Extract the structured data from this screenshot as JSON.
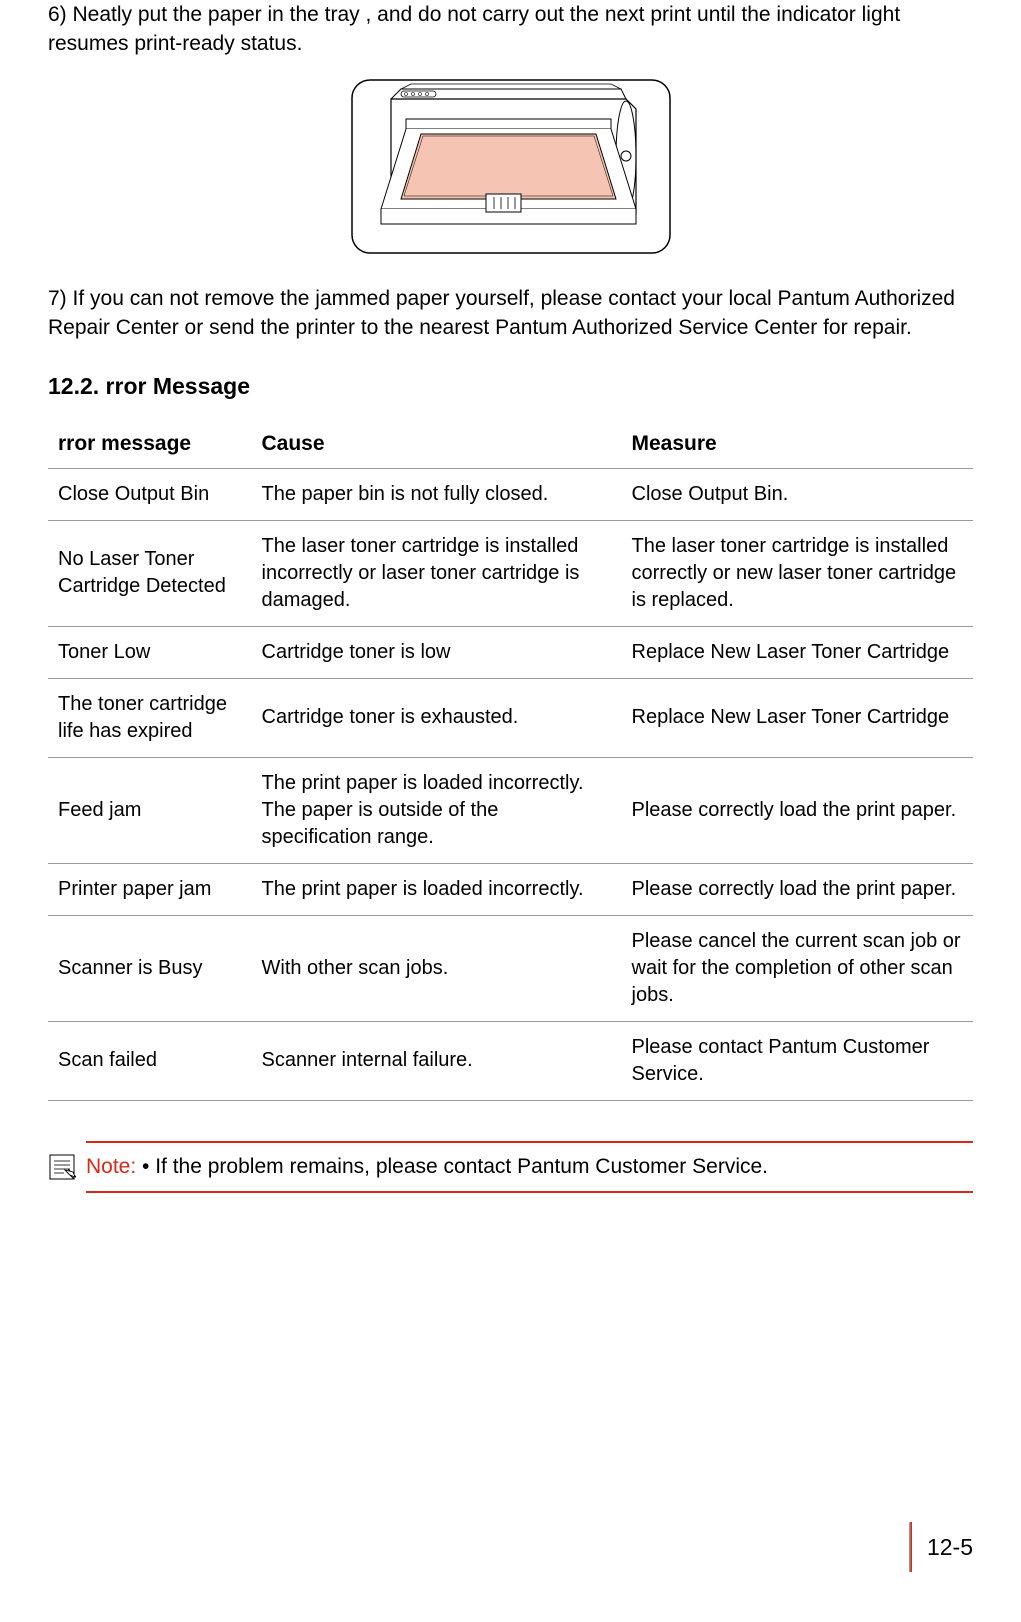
{
  "step6_text": "6) Neatly put the paper in the tray , and do not carry out the next print until the indicator light resumes print-ready status.",
  "step7_text": "7) If you can not remove the jammed paper yourself, please contact your local Pantum Authorized Repair Center or send the printer to the nearest Pantum Authorized Service Center for repair.",
  "section_heading": "12.2.    rror Message",
  "table": {
    "headers": [
      "   rror message",
      "Cause",
      "Measure"
    ],
    "rows": [
      {
        "error": "Close Output Bin",
        "cause": "The paper bin is not fully closed.",
        "measure": "Close Output Bin."
      },
      {
        "error": "No Laser Toner Cartridge Detected",
        "cause": "The laser toner cartridge is installed incorrectly or laser toner cartridge is damaged.",
        "measure": "The laser toner cartridge is installed correctly or new laser toner cartridge is replaced."
      },
      {
        "error": "Toner Low",
        "cause": "Cartridge toner is low",
        "measure": "Replace New Laser Toner Cartridge"
      },
      {
        "error": "The toner cartridge life has expired",
        "cause": "Cartridge toner is exhausted.",
        "measure": "Replace New Laser Toner Cartridge"
      },
      {
        "error": "Feed jam",
        "cause": "The print paper is loaded incorrectly. The paper is outside of the specification range.",
        "measure": "Please correctly load the print paper."
      },
      {
        "error": "Printer paper jam",
        "cause": "The print paper is loaded incorrectly.",
        "measure": "Please correctly load the print paper."
      },
      {
        "error": "Scanner is Busy",
        "cause": "With other scan jobs.",
        "measure": "Please cancel the current scan job or wait for the completion of other scan jobs."
      },
      {
        "error": "Scan failed",
        "cause": "Scanner internal failure.",
        "measure": "Please contact Pantum Customer Service."
      }
    ]
  },
  "note": {
    "label": "Note:",
    "text": " • If the problem remains, please contact Pantum Customer Service."
  },
  "page_number": "12-5",
  "colors": {
    "accent_red": "#d92818",
    "border_gray": "#999999",
    "paper_fill": "#f5c4b2"
  }
}
